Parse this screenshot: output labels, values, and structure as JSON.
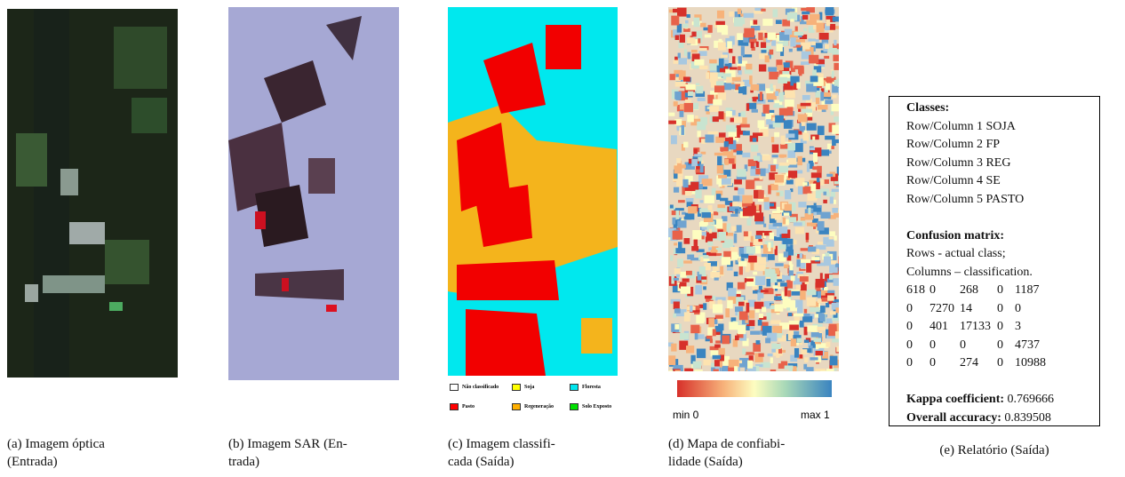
{
  "panels": [
    {
      "caption": [
        "(a) Imagem óptica",
        "(Entrada)"
      ]
    },
    {
      "caption": [
        "(b) Imagem SAR (En-",
        "trada)"
      ]
    },
    {
      "caption": [
        "(c) Imagem classifi-",
        "cada (Saída)"
      ],
      "legend": [
        {
          "label": "Não classificado",
          "color": "#ffffff"
        },
        {
          "label": "Soja",
          "color": "#ffff00"
        },
        {
          "label": "Floresta",
          "color": "#00e5ee"
        },
        {
          "label": "Pasto",
          "color": "#ff0000"
        },
        {
          "label": "Regeneração",
          "color": "#ffb000"
        },
        {
          "label": "Solo Exposto",
          "color": "#00e000"
        }
      ]
    },
    {
      "caption": [
        "(d) Mapa de confiabi-",
        "lidade (Saída)"
      ],
      "colorbar": {
        "min_label": "min 0",
        "max_label": "max 1"
      }
    },
    {
      "caption": [
        "(e) Relatório (Saída)"
      ]
    }
  ],
  "report": {
    "classes_title": "Classes:",
    "classes": [
      "Row/Column 1 SOJA",
      "Row/Column 2 FP",
      "Row/Column 3 REG",
      "Row/Column 4 SE",
      "Row/Column 5 PASTO"
    ],
    "matrix_title": "Confusion matrix:",
    "matrix_notes": [
      "Rows - actual class;",
      "Columns – classification."
    ],
    "matrix": [
      [
        618,
        0,
        268,
        0,
        1187
      ],
      [
        0,
        7270,
        14,
        0,
        0
      ],
      [
        0,
        401,
        17133,
        0,
        3
      ],
      [
        0,
        0,
        0,
        0,
        4737
      ],
      [
        0,
        0,
        274,
        0,
        10988
      ]
    ],
    "kappa_label": "Kappa coefficient:",
    "kappa": 0.769666,
    "accuracy_label": "Overall accuracy:",
    "accuracy": 0.839508
  }
}
